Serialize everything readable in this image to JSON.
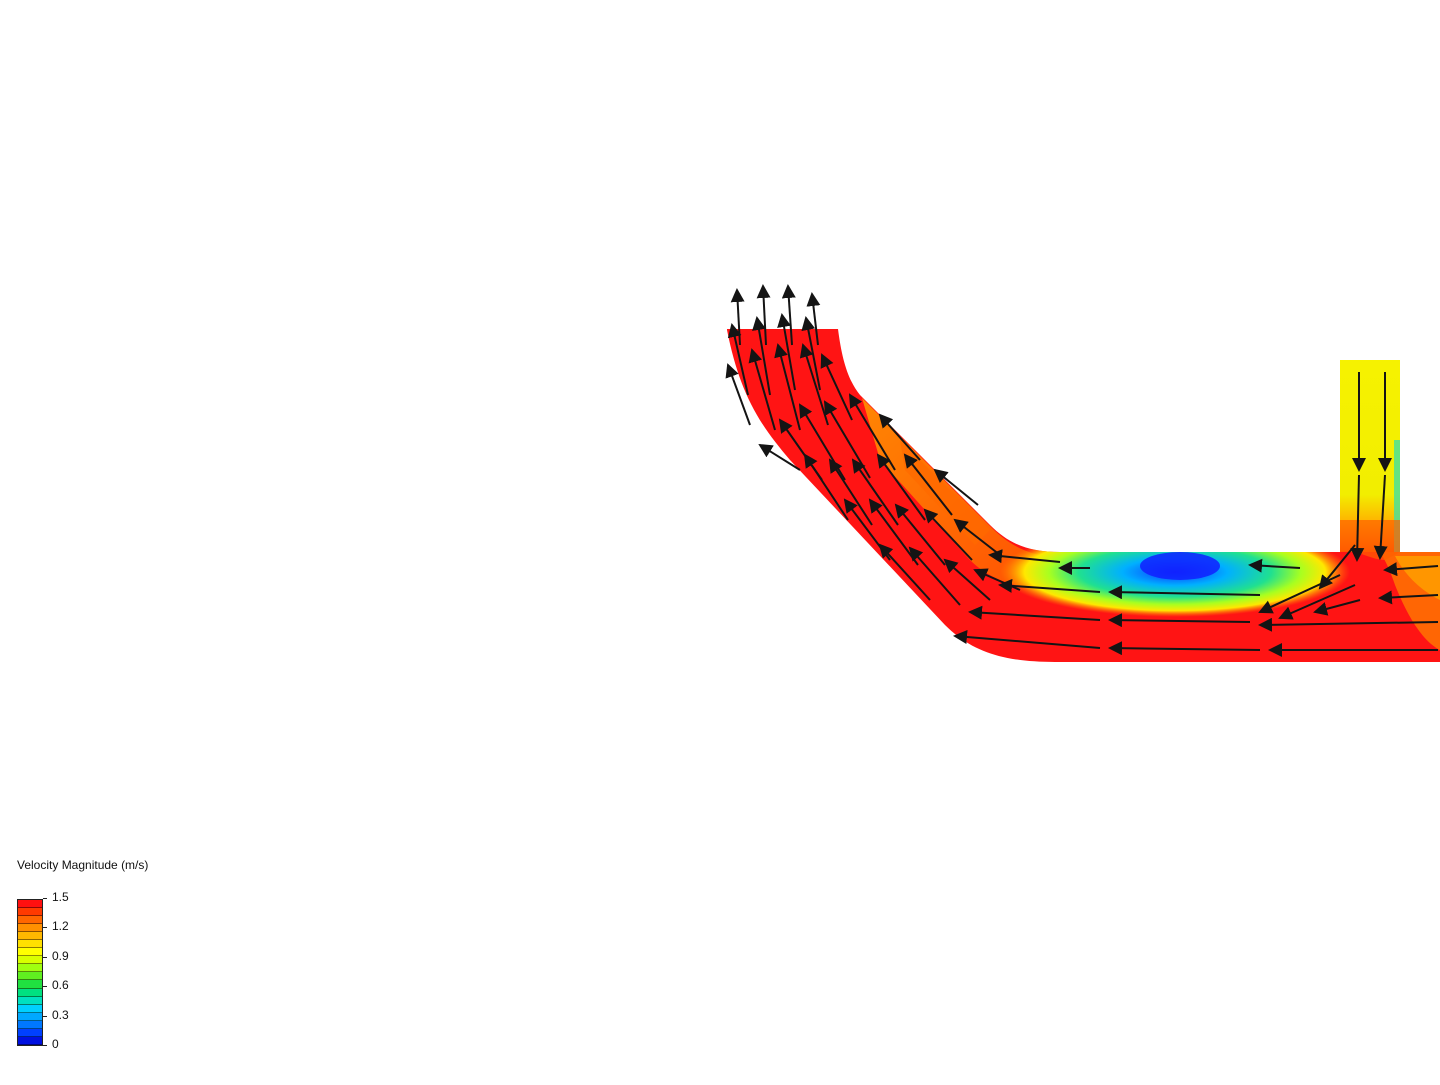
{
  "legend": {
    "title": "Velocity Magnitude (m/s)",
    "ticks": [
      "1.5",
      "1.2",
      "0.9",
      "0.6",
      "0.3",
      "0"
    ],
    "range": [
      0,
      1.5
    ],
    "colors": [
      "#ff1010",
      "#ff3a00",
      "#ff6600",
      "#ff9000",
      "#ffb800",
      "#ffe000",
      "#ffff00",
      "#d8ff00",
      "#a0ff10",
      "#60f020",
      "#20e040",
      "#00e080",
      "#00e0c0",
      "#00d0ff",
      "#00a8ff",
      "#0078ff",
      "#0040ff",
      "#0010e0"
    ]
  },
  "colors": {
    "high_speed": "#ff1414",
    "mid_speed": "#ff8c00",
    "low_speed": "#1e6bff",
    "inlet_speed": "#f2f000",
    "vector": "#141414"
  }
}
